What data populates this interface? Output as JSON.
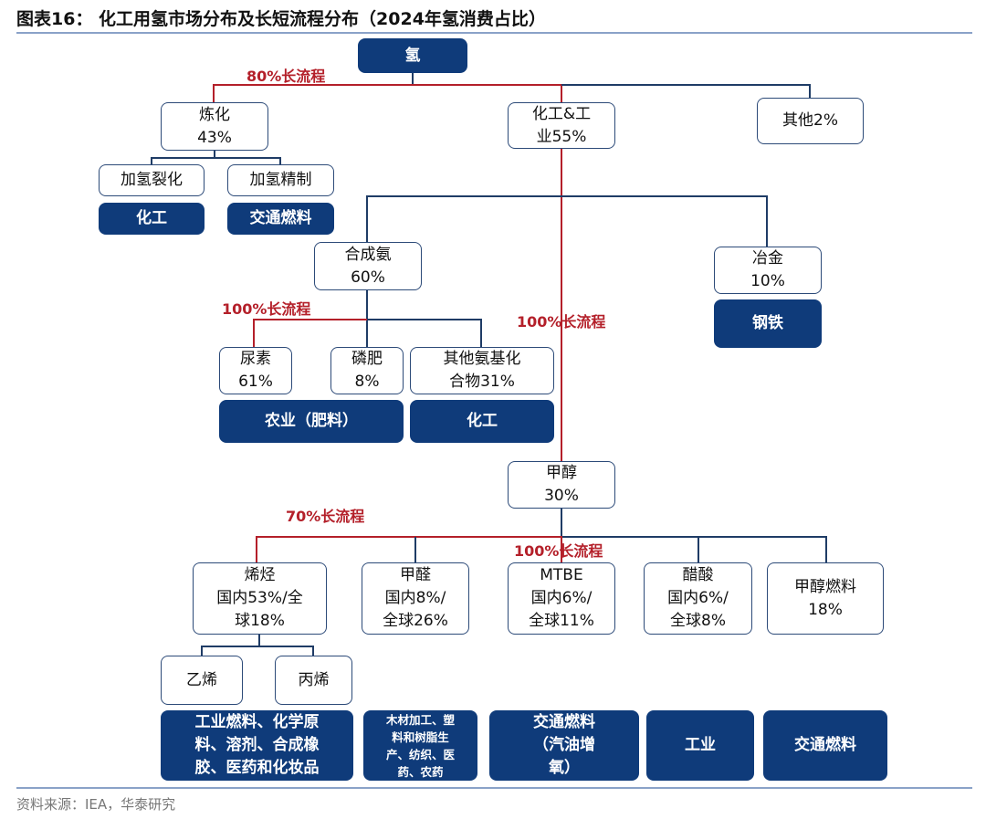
{
  "title": "图表16： 化工用氢市场分布及长短流程分布（2024年氢消费占比）",
  "source": "资料来源：IEA，华泰研究",
  "colors": {
    "dark_box": "#0f3b7a",
    "long_process_line": "#b4202a",
    "connector_line": "#1f3c66"
  },
  "nodes": {
    "root": "氢",
    "refining": "炼化\n43%",
    "chem_industry": "化工&工\n业55%",
    "other": "其他2%",
    "hydrocracking": "加氢裂化",
    "hydrotreating": "加氢精制",
    "hydrocracking_use": "化工",
    "hydrotreating_use": "交通燃料",
    "ammonia": "合成氨\n60%",
    "metallurgy": "冶金\n10%",
    "metallurgy_use": "钢铁",
    "urea": "尿素\n61%",
    "phosphate": "磷肥\n8%",
    "other_ammonia": "其他氨基化\n合物31%",
    "agri_use": "农业（肥料）",
    "other_ammonia_use": "化工",
    "methanol": "甲醇\n30%",
    "olefins": "烯烃\n国内53%/全\n球18%",
    "formaldehyde": "甲醛\n国内8%/\n全球26%",
    "mtbe": "MTBE\n国内6%/\n全球11%",
    "acetic_acid": "醋酸\n国内6%/\n全球8%",
    "methanol_fuel": "甲醇燃料\n18%",
    "ethylene": "乙烯",
    "propylene": "丙烯",
    "olefins_use": "工业燃料、化学原\n料、溶剂、合成橡\n胶、医药和化妆品",
    "formaldehyde_use": "木材加工、塑\n料和树脂生\n产、纺织、医\n药、农药",
    "mtbe_use": "交通燃料\n（汽油增\n氧）",
    "acetic_acid_use": "工业",
    "methanol_fuel_use": "交通燃料"
  },
  "labels": {
    "refining_long": "80%长流程",
    "ammonia_long": "100%长流程",
    "chem_methanol_long": "100%长流程",
    "olefins_long": "70%长流程",
    "mtbe_long": "100%长流程"
  }
}
